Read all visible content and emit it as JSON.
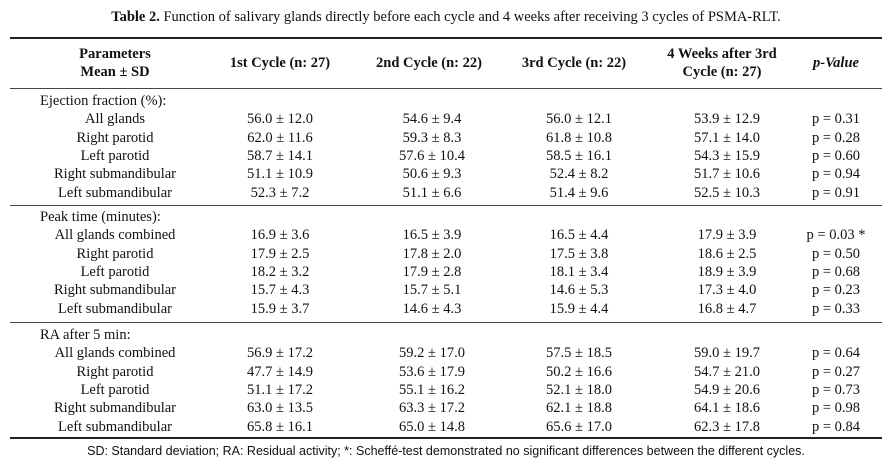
{
  "caption": {
    "label": "Table 2.",
    "text": "Function of salivary glands directly before each cycle and 4 weeks after receiving 3 cycles of PSMA-RLT."
  },
  "headers": {
    "parameters_line1": "Parameters",
    "parameters_line2": "Mean ± SD",
    "c1": "1st Cycle (n: 27)",
    "c2": "2nd Cycle (n: 22)",
    "c3": "3rd Cycle (n: 22)",
    "c4_line1": "4 Weeks after 3rd",
    "c4_line2": "Cycle (n: 27)",
    "pvalue": "p-Value"
  },
  "sections": [
    {
      "title": "Ejection fraction (%):",
      "rows": [
        {
          "label": "All glands",
          "v1": "56.0 ± 12.0",
          "v2": "54.6 ± 9.4",
          "v3": "56.0 ± 12.1",
          "v4": "53.9 ± 12.9",
          "p": "p = 0.31"
        },
        {
          "label": "Right parotid",
          "v1": "62.0 ± 11.6",
          "v2": "59.3 ± 8.3",
          "v3": "61.8 ± 10.8",
          "v4": "57.1 ± 14.0",
          "p": "p = 0.28"
        },
        {
          "label": "Left parotid",
          "v1": "58.7 ± 14.1",
          "v2": "57.6 ± 10.4",
          "v3": "58.5 ± 16.1",
          "v4": "54.3 ± 15.9",
          "p": "p = 0.60"
        },
        {
          "label": "Right submandibular",
          "v1": "51.1 ± 10.9",
          "v2": "50.6 ± 9.3",
          "v3": "52.4 ± 8.2",
          "v4": "51.7 ± 10.6",
          "p": "p = 0.94"
        },
        {
          "label": "Left submandibular",
          "v1": "52.3 ± 7.2",
          "v2": "51.1 ± 6.6",
          "v3": "51.4 ± 9.6",
          "v4": "52.5 ± 10.3",
          "p": "p = 0.91"
        }
      ]
    },
    {
      "title": "Peak time (minutes):",
      "rows": [
        {
          "label": "All glands combined",
          "v1": "16.9 ± 3.6",
          "v2": "16.5 ± 3.9",
          "v3": "16.5 ± 4.4",
          "v4": "17.9 ± 3.9",
          "p": "p = 0.03 *"
        },
        {
          "label": "Right parotid",
          "v1": "17.9 ± 2.5",
          "v2": "17.8 ± 2.0",
          "v3": "17.5 ± 3.8",
          "v4": "18.6 ± 2.5",
          "p": "p = 0.50"
        },
        {
          "label": "Left parotid",
          "v1": "18.2 ± 3.2",
          "v2": "17.9 ± 2.8",
          "v3": "18.1 ± 3.4",
          "v4": "18.9 ± 3.9",
          "p": "p = 0.68"
        },
        {
          "label": "Right submandibular",
          "v1": "15.7 ± 4.3",
          "v2": "15.7 ± 5.1",
          "v3": "14.6 ± 5.3",
          "v4": "17.3 ± 4.0",
          "p": "p = 0.23"
        },
        {
          "label": "Left submandibular",
          "v1": "15.9 ± 3.7",
          "v2": "14.6 ± 4.3",
          "v3": "15.9 ± 4.4",
          "v4": "16.8 ± 4.7",
          "p": "p = 0.33"
        }
      ]
    },
    {
      "title": "RA after 5 min:",
      "rows": [
        {
          "label": "All glands combined",
          "v1": "56.9 ± 17.2",
          "v2": "59.2 ± 17.0",
          "v3": "57.5 ± 18.5",
          "v4": "59.0 ± 19.7",
          "p": "p = 0.64"
        },
        {
          "label": "Right parotid",
          "v1": "47.7 ± 14.9",
          "v2": "53.6 ± 17.9",
          "v3": "50.2 ± 16.6",
          "v4": "54.7 ± 21.0",
          "p": "p = 0.27"
        },
        {
          "label": "Left parotid",
          "v1": "51.1 ± 17.2",
          "v2": "55.1 ± 16.2",
          "v3": "52.1 ± 18.0",
          "v4": "54.9 ± 20.6",
          "p": "p = 0.73"
        },
        {
          "label": "Right submandibular",
          "v1": "63.0 ± 13.5",
          "v2": "63.3 ± 17.2",
          "v3": "62.1 ± 18.8",
          "v4": "64.1 ± 18.6",
          "p": "p = 0.98"
        },
        {
          "label": "Left submandibular",
          "v1": "65.8 ± 16.1",
          "v2": "65.0 ± 14.8",
          "v3": "65.6 ± 17.0",
          "v4": "62.3 ± 17.8",
          "p": "p = 0.84"
        }
      ]
    }
  ],
  "footer": "SD: Standard deviation; RA: Residual activity; *: Scheffé-test demonstrated no significant differences between the different cycles."
}
